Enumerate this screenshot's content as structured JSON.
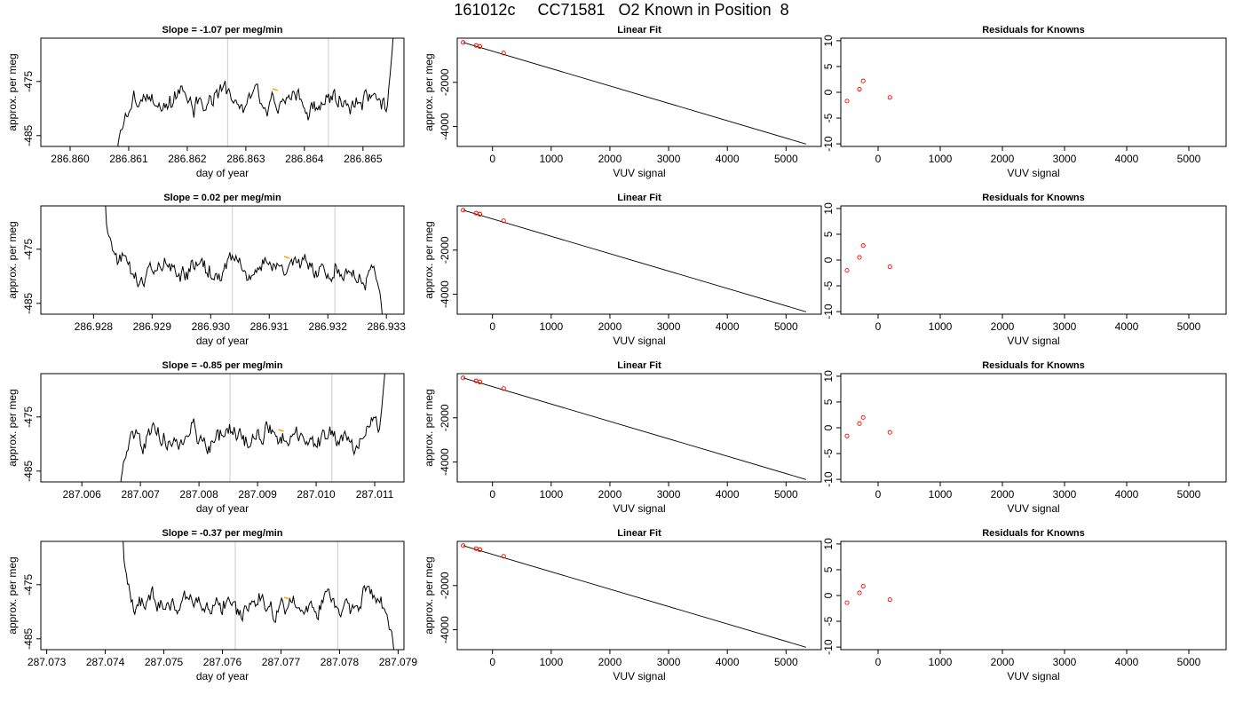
{
  "page_title": "161012c     CC71581   O2 Known in Position  8",
  "colors": {
    "trace": "#000000",
    "marker": "#ffa500",
    "grid_line": "#d3d3d3",
    "point": "#ff0000"
  },
  "chart_data": [
    {
      "row": 1,
      "type": "line",
      "title": "Slope =  -1.07  per meg/min",
      "xlabel": "day of year",
      "ylabel": "approx. per meg",
      "xlim": [
        286.8595,
        286.8657
      ],
      "ylim": [
        -487,
        -467
      ],
      "xticks": [
        "286.860",
        "286.861",
        "286.862",
        "286.863",
        "286.864",
        "286.865"
      ],
      "yticks": [
        "-475",
        "-485"
      ],
      "trace_x_range": [
        286.8608,
        286.86552
      ],
      "shape": "steep rise at start, noisy plateau near -477, steep rise at end",
      "vlines": [
        286.86269,
        286.86441
      ],
      "marker": {
        "x": 286.8635,
        "y": -476.5
      }
    },
    {
      "row": 1,
      "type": "scatter",
      "title": "Linear Fit",
      "xlabel": "VUV signal",
      "ylabel": "approx. per meg",
      "xlim": [
        -600,
        5600
      ],
      "ylim": [
        -4900,
        0
      ],
      "xticks": [
        "0",
        "1000",
        "2000",
        "3000",
        "4000",
        "5000"
      ],
      "yticks": [
        "-2000",
        "-4000"
      ],
      "points": [
        [
          -500,
          -195
        ],
        [
          -280,
          -330
        ],
        [
          -215,
          -375
        ],
        [
          190,
          -675
        ]
      ],
      "highlight": [
        -215,
        -375
      ],
      "fit_line": [
        [
          -500,
          -195
        ],
        [
          5340,
          -4790
        ]
      ]
    },
    {
      "row": 1,
      "type": "scatter",
      "title": "Residuals for Knowns",
      "xlabel": "VUV signal",
      "ylabel": "",
      "xlim": [
        -600,
        5600
      ],
      "ylim": [
        -10.5,
        10.5
      ],
      "xticks": [
        "0",
        "1000",
        "2000",
        "3000",
        "4000",
        "5000"
      ],
      "yticks": [
        "10",
        "5",
        "0",
        "-5",
        "-10"
      ],
      "points": [
        [
          -500,
          -1.7
        ],
        [
          -300,
          0.6
        ],
        [
          -240,
          2.2
        ],
        [
          190,
          -1.0
        ]
      ]
    },
    {
      "row": 2,
      "type": "line",
      "title": "Slope =  0.02  per meg/min",
      "xlabel": "day of year",
      "ylabel": "approx. per meg",
      "xlim": [
        286.9271,
        286.9333
      ],
      "ylim": [
        -487,
        -467
      ],
      "xticks": [
        "286.928",
        "286.929",
        "286.930",
        "286.931",
        "286.932",
        "286.933"
      ],
      "yticks": [
        "-475",
        "-485"
      ],
      "trace_x_range": [
        286.9282,
        286.93295
      ],
      "shape": "steep fall at start, noisy plateau near -477, fall at end",
      "vlines": [
        286.93037,
        286.93212
      ],
      "marker": {
        "x": 286.9313,
        "y": -476.5
      }
    },
    {
      "row": 2,
      "type": "scatter",
      "title": "Linear Fit",
      "xlabel": "VUV signal",
      "ylabel": "approx. per meg",
      "xlim": [
        -600,
        5600
      ],
      "ylim": [
        -4900,
        0
      ],
      "xticks": [
        "0",
        "1000",
        "2000",
        "3000",
        "4000",
        "5000"
      ],
      "yticks": [
        "-2000",
        "-4000"
      ],
      "points": [
        [
          -500,
          -195
        ],
        [
          -280,
          -330
        ],
        [
          -215,
          -375
        ],
        [
          190,
          -675
        ]
      ],
      "highlight": [
        -215,
        -375
      ],
      "fit_line": [
        [
          -500,
          -195
        ],
        [
          5340,
          -4790
        ]
      ]
    },
    {
      "row": 2,
      "type": "scatter",
      "title": "Residuals for Knowns",
      "xlabel": "VUV signal",
      "ylabel": "",
      "xlim": [
        -600,
        5600
      ],
      "ylim": [
        -10.5,
        10.5
      ],
      "xticks": [
        "0",
        "1000",
        "2000",
        "3000",
        "4000",
        "5000"
      ],
      "yticks": [
        "10",
        "5",
        "0",
        "-5",
        "-10"
      ],
      "points": [
        [
          -500,
          -2.0
        ],
        [
          -300,
          0.5
        ],
        [
          -240,
          2.8
        ],
        [
          190,
          -1.3
        ]
      ]
    },
    {
      "row": 3,
      "type": "line",
      "title": "Slope =  -0.85  per meg/min",
      "xlabel": "day of year",
      "ylabel": "approx. per meg",
      "xlim": [
        287.0053,
        287.0115
      ],
      "ylim": [
        -487,
        -467
      ],
      "xticks": [
        "287.006",
        "287.007",
        "287.008",
        "287.009",
        "287.010",
        "287.011"
      ],
      "yticks": [
        "-475",
        "-485"
      ],
      "trace_x_range": [
        287.00665,
        287.01118
      ],
      "shape": "steep rise at start, noisy plateau near -479, steep rise at end",
      "vlines": [
        287.00853,
        287.01027
      ],
      "marker": {
        "x": 287.0094,
        "y": -477.5
      }
    },
    {
      "row": 3,
      "type": "scatter",
      "title": "Linear Fit",
      "xlabel": "VUV signal",
      "ylabel": "approx. per meg",
      "xlim": [
        -600,
        5600
      ],
      "ylim": [
        -4900,
        0
      ],
      "xticks": [
        "0",
        "1000",
        "2000",
        "3000",
        "4000",
        "5000"
      ],
      "yticks": [
        "-2000",
        "-4000"
      ],
      "points": [
        [
          -500,
          -195
        ],
        [
          -280,
          -330
        ],
        [
          -215,
          -375
        ],
        [
          190,
          -675
        ]
      ],
      "highlight": [
        -215,
        -375
      ],
      "fit_line": [
        [
          -500,
          -195
        ],
        [
          5340,
          -4790
        ]
      ]
    },
    {
      "row": 3,
      "type": "scatter",
      "title": "Residuals for Knowns",
      "xlabel": "VUV signal",
      "ylabel": "",
      "xlim": [
        -600,
        5600
      ],
      "ylim": [
        -10.5,
        10.5
      ],
      "xticks": [
        "0",
        "1000",
        "2000",
        "3000",
        "4000",
        "5000"
      ],
      "yticks": [
        "10",
        "5",
        "0",
        "-5",
        "-10"
      ],
      "points": [
        [
          -500,
          -1.6
        ],
        [
          -300,
          0.8
        ],
        [
          -240,
          2.0
        ],
        [
          190,
          -0.9
        ]
      ]
    },
    {
      "row": 4,
      "type": "line",
      "title": "Slope =  -0.37  per meg/min",
      "xlabel": "day of year",
      "ylabel": "approx. per meg",
      "xlim": [
        287.0729,
        287.0791
      ],
      "ylim": [
        -487,
        -467
      ],
      "xticks": [
        "287.073",
        "287.074",
        "287.075",
        "287.076",
        "287.077",
        "287.078",
        "287.079"
      ],
      "yticks": [
        "-475",
        "-485"
      ],
      "trace_x_range": [
        287.0743,
        287.07895
      ],
      "shape": "steep fall at start, noisy plateau near -477, steep fall at end",
      "vlines": [
        287.07622,
        287.07797
      ],
      "marker": {
        "x": 287.0771,
        "y": -477.5
      }
    },
    {
      "row": 4,
      "type": "scatter",
      "title": "Linear Fit",
      "xlabel": "VUV signal",
      "ylabel": "approx. per meg",
      "xlim": [
        -600,
        5600
      ],
      "ylim": [
        -4900,
        0
      ],
      "xticks": [
        "0",
        "1000",
        "2000",
        "3000",
        "4000",
        "5000"
      ],
      "yticks": [
        "-2000",
        "-4000"
      ],
      "points": [
        [
          -500,
          -195
        ],
        [
          -280,
          -330
        ],
        [
          -215,
          -375
        ],
        [
          190,
          -675
        ]
      ],
      "highlight": [
        -215,
        -375
      ],
      "fit_line": [
        [
          -500,
          -195
        ],
        [
          5340,
          -4790
        ]
      ]
    },
    {
      "row": 4,
      "type": "scatter",
      "title": "Residuals for Knowns",
      "xlabel": "VUV signal",
      "ylabel": "",
      "xlim": [
        -600,
        5600
      ],
      "ylim": [
        -10.5,
        10.5
      ],
      "xticks": [
        "0",
        "1000",
        "2000",
        "3000",
        "4000",
        "5000"
      ],
      "yticks": [
        "10",
        "5",
        "0",
        "-5",
        "-10"
      ],
      "points": [
        [
          -500,
          -1.4
        ],
        [
          -300,
          0.5
        ],
        [
          -240,
          1.8
        ],
        [
          190,
          -0.8
        ]
      ]
    }
  ]
}
